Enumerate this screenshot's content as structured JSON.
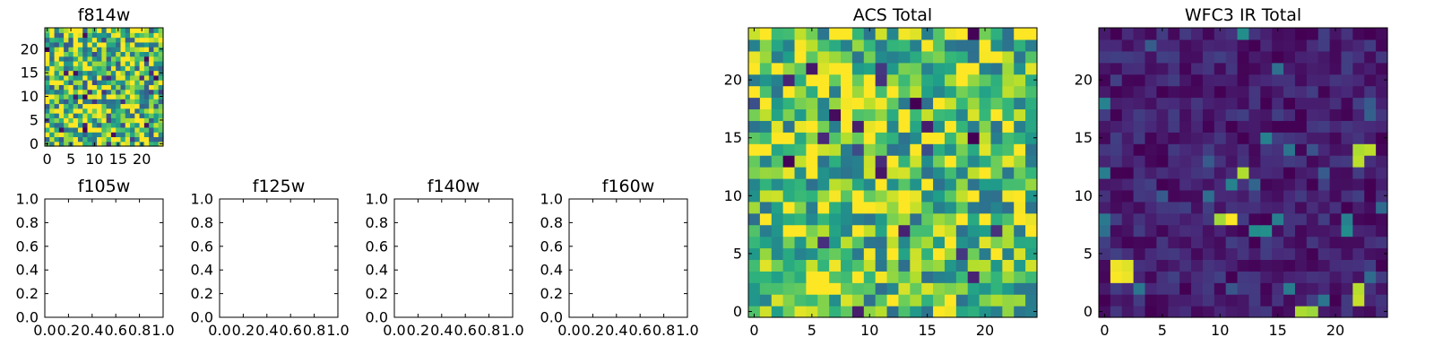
{
  "chart_data": [
    {
      "type": "heatmap",
      "title": "f814w",
      "grid_size": 25,
      "colormap": "viridis",
      "seed": 814,
      "mean_level": 0.72,
      "spread": 0.45,
      "xticks": [
        0,
        5,
        10,
        15,
        20
      ],
      "yticks": [
        0,
        5,
        10,
        15,
        20
      ],
      "xtick_labels": [
        "0",
        "5",
        "10",
        "15",
        "20"
      ],
      "ytick_labels": [
        "0",
        "5",
        "10",
        "15",
        "20"
      ]
    },
    {
      "type": "empty",
      "title": "f105w",
      "xlim": [
        0,
        1
      ],
      "ylim": [
        0,
        1
      ],
      "xtick_labels": [
        "0.0",
        "0.2",
        "0.4",
        "0.6",
        "0.8",
        "1.0"
      ],
      "ytick_labels": [
        "0.0",
        "0.2",
        "0.4",
        "0.6",
        "0.8",
        "1.0"
      ]
    },
    {
      "type": "empty",
      "title": "f125w",
      "xlim": [
        0,
        1
      ],
      "ylim": [
        0,
        1
      ],
      "xtick_labels": [
        "0.0",
        "0.2",
        "0.4",
        "0.6",
        "0.8",
        "1.0"
      ],
      "ytick_labels": [
        "0.0",
        "0.2",
        "0.4",
        "0.6",
        "0.8",
        "1.0"
      ]
    },
    {
      "type": "empty",
      "title": "f140w",
      "xlim": [
        0,
        1
      ],
      "ylim": [
        0,
        1
      ],
      "xtick_labels": [
        "0.0",
        "0.2",
        "0.4",
        "0.6",
        "0.8",
        "1.0"
      ],
      "ytick_labels": [
        "0.0",
        "0.2",
        "0.4",
        "0.6",
        "0.8",
        "1.0"
      ]
    },
    {
      "type": "empty",
      "title": "f160w",
      "xlim": [
        0,
        1
      ],
      "ylim": [
        0,
        1
      ],
      "xtick_labels": [
        "0.0",
        "0.2",
        "0.4",
        "0.6",
        "0.8",
        "1.0"
      ],
      "ytick_labels": [
        "0.0",
        "0.2",
        "0.4",
        "0.6",
        "0.8",
        "1.0"
      ]
    },
    {
      "type": "heatmap",
      "title": "ACS Total",
      "grid_size": 25,
      "colormap": "viridis",
      "seed": 606,
      "mean_level": 0.74,
      "spread": 0.38,
      "xticks": [
        0,
        5,
        10,
        15,
        20
      ],
      "yticks": [
        0,
        5,
        10,
        15,
        20
      ],
      "xtick_labels": [
        "0",
        "5",
        "10",
        "15",
        "20"
      ],
      "ytick_labels": [
        "0",
        "5",
        "10",
        "15",
        "20"
      ]
    },
    {
      "type": "heatmap",
      "title": "WFC3 IR Total",
      "grid_size": 25,
      "colormap": "viridis",
      "seed": 3,
      "mean_level": 0.09,
      "spread": 0.1,
      "bright_cells": [
        [
          1,
          3
        ],
        [
          2,
          3
        ],
        [
          1,
          4
        ],
        [
          2,
          4
        ],
        [
          10,
          8
        ],
        [
          11,
          8
        ],
        [
          12,
          12
        ],
        [
          22,
          14
        ],
        [
          23,
          14
        ],
        [
          22,
          13
        ],
        [
          18,
          0
        ],
        [
          17,
          0
        ],
        [
          22,
          1
        ],
        [
          22,
          2
        ]
      ],
      "xticks": [
        0,
        5,
        10,
        15,
        20
      ],
      "yticks": [
        0,
        5,
        10,
        15,
        20
      ],
      "xtick_labels": [
        "0",
        "5",
        "10",
        "15",
        "20"
      ],
      "ytick_labels": [
        "0",
        "5",
        "10",
        "15",
        "20"
      ]
    }
  ]
}
